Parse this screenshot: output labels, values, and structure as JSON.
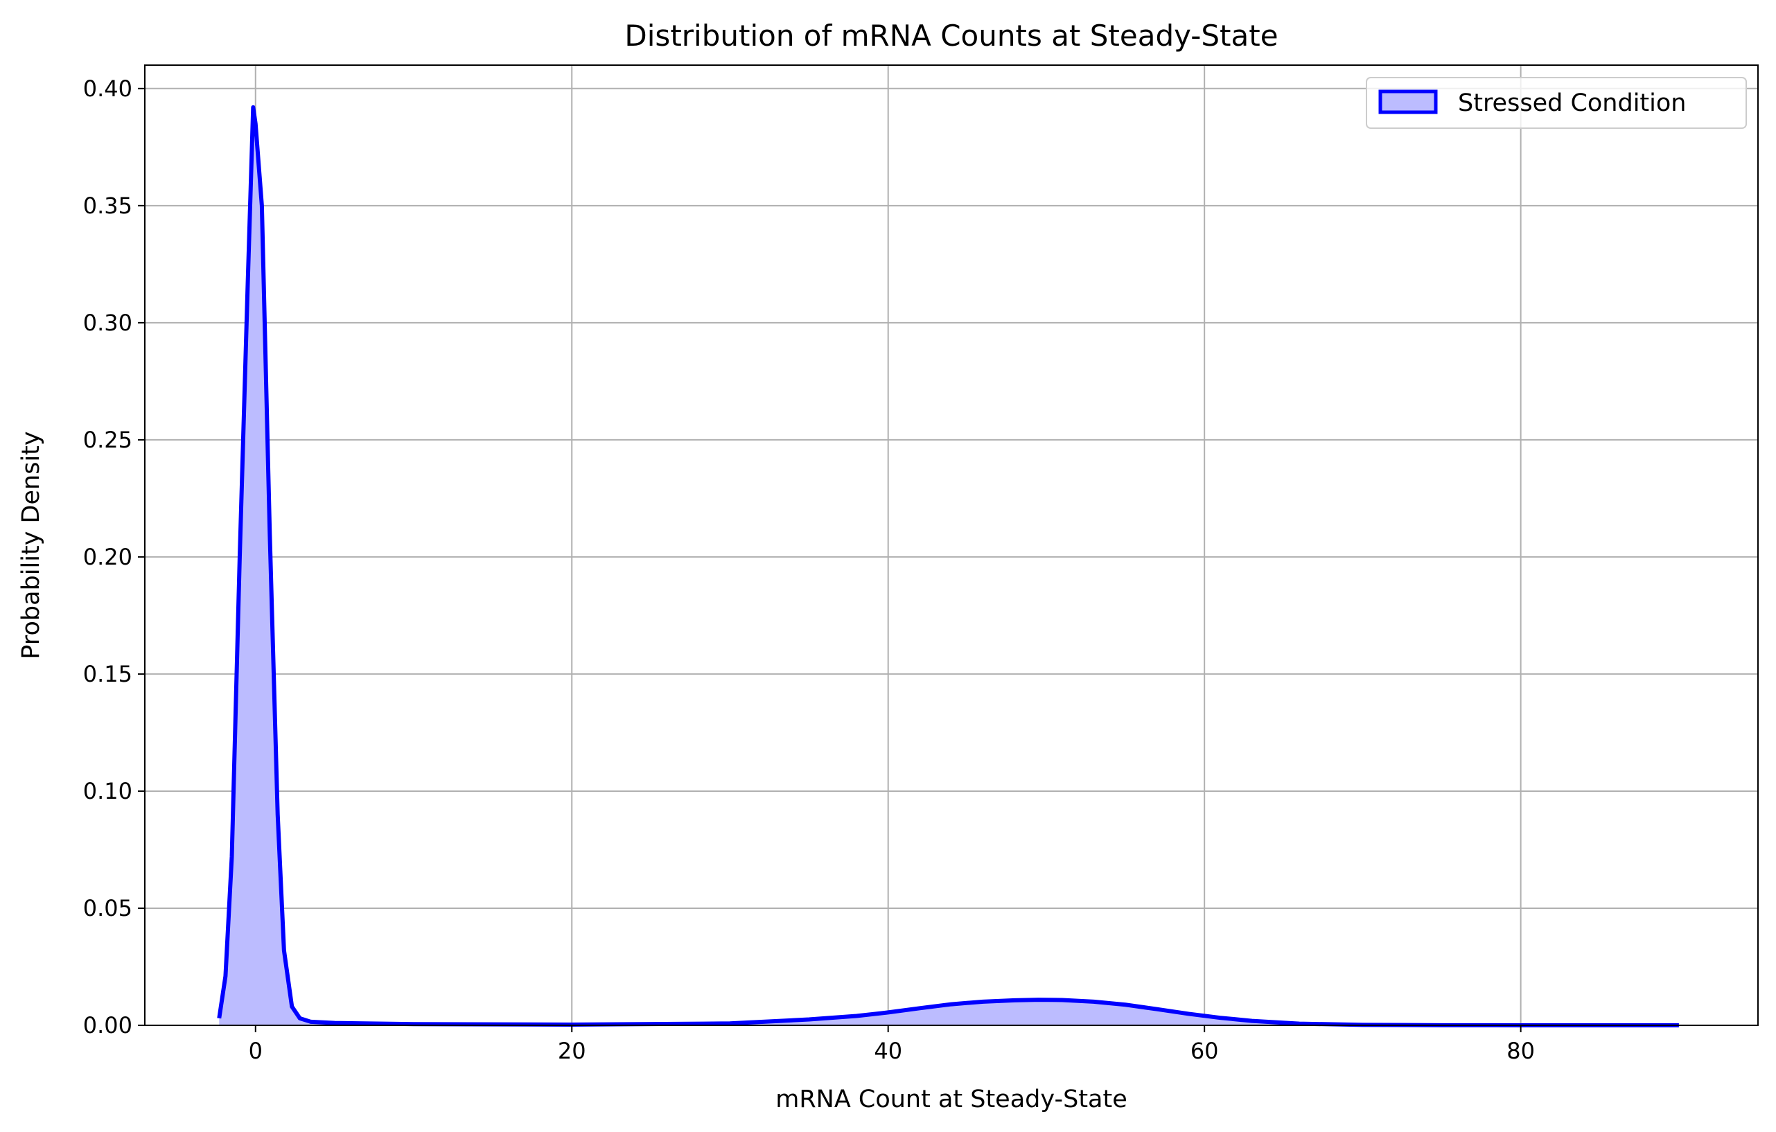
{
  "chart_data": {
    "type": "area",
    "title": "Distribution of mRNA Counts at Steady-State",
    "xlabel": "mRNA Count at Steady-State",
    "ylabel": "Probability Density",
    "xlim": [
      -7,
      95
    ],
    "ylim": [
      0,
      0.41
    ],
    "xticks": [
      0,
      20,
      40,
      60,
      80
    ],
    "yticks": [
      0.0,
      0.05,
      0.1,
      0.15,
      0.2,
      0.25,
      0.3,
      0.35,
      0.4
    ],
    "xtick_labels": [
      "0",
      "20",
      "40",
      "60",
      "80"
    ],
    "ytick_labels": [
      "0.00",
      "0.05",
      "0.10",
      "0.15",
      "0.20",
      "0.25",
      "0.30",
      "0.35",
      "0.40"
    ],
    "grid": true,
    "legend_position": "top-right",
    "series": [
      {
        "name": "Stressed Condition",
        "line_color": "#0000ff",
        "fill_color": "#bcbcff",
        "x": [
          -2.3,
          -1.9,
          -1.5,
          -1.0,
          -0.5,
          -0.15,
          0.0,
          0.4,
          0.9,
          1.4,
          1.8,
          2.3,
          2.8,
          3.5,
          5.0,
          10,
          20,
          30,
          35,
          38,
          40,
          42,
          44,
          46,
          48,
          49.5,
          51,
          53,
          55,
          57,
          59,
          61,
          63,
          66,
          70,
          75,
          80,
          85,
          90
        ],
        "y": [
          0.003,
          0.021,
          0.072,
          0.2,
          0.315,
          0.392,
          0.385,
          0.35,
          0.21,
          0.09,
          0.032,
          0.008,
          0.003,
          0.0015,
          0.001,
          0.0005,
          0.0003,
          0.0008,
          0.0025,
          0.004,
          0.0055,
          0.0073,
          0.009,
          0.0101,
          0.0107,
          0.0109,
          0.0108,
          0.0101,
          0.0088,
          0.0069,
          0.0049,
          0.0032,
          0.0019,
          0.0007,
          0.0002,
          5e-05,
          1e-05,
          0.0,
          0.0
        ]
      }
    ]
  }
}
